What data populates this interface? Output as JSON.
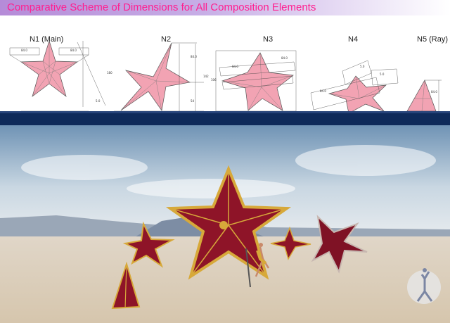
{
  "header": {
    "title": "Comparative Scheme of Dimensions for All Composition Elements"
  },
  "colors": {
    "header_text": "#ff1f8f",
    "star_fill": "#f2a3b3",
    "ground_band": "#0e2a5a",
    "star_photo": "#8e1428",
    "star_gold": "#d7a93a"
  },
  "stars": [
    {
      "label": "N1 (Main)"
    },
    {
      "label": "N2"
    },
    {
      "label": "N3"
    },
    {
      "label": "N4"
    },
    {
      "label": "N5 (Ray)"
    }
  ],
  "photo": {
    "description_icon": "figure-logo-icon"
  }
}
